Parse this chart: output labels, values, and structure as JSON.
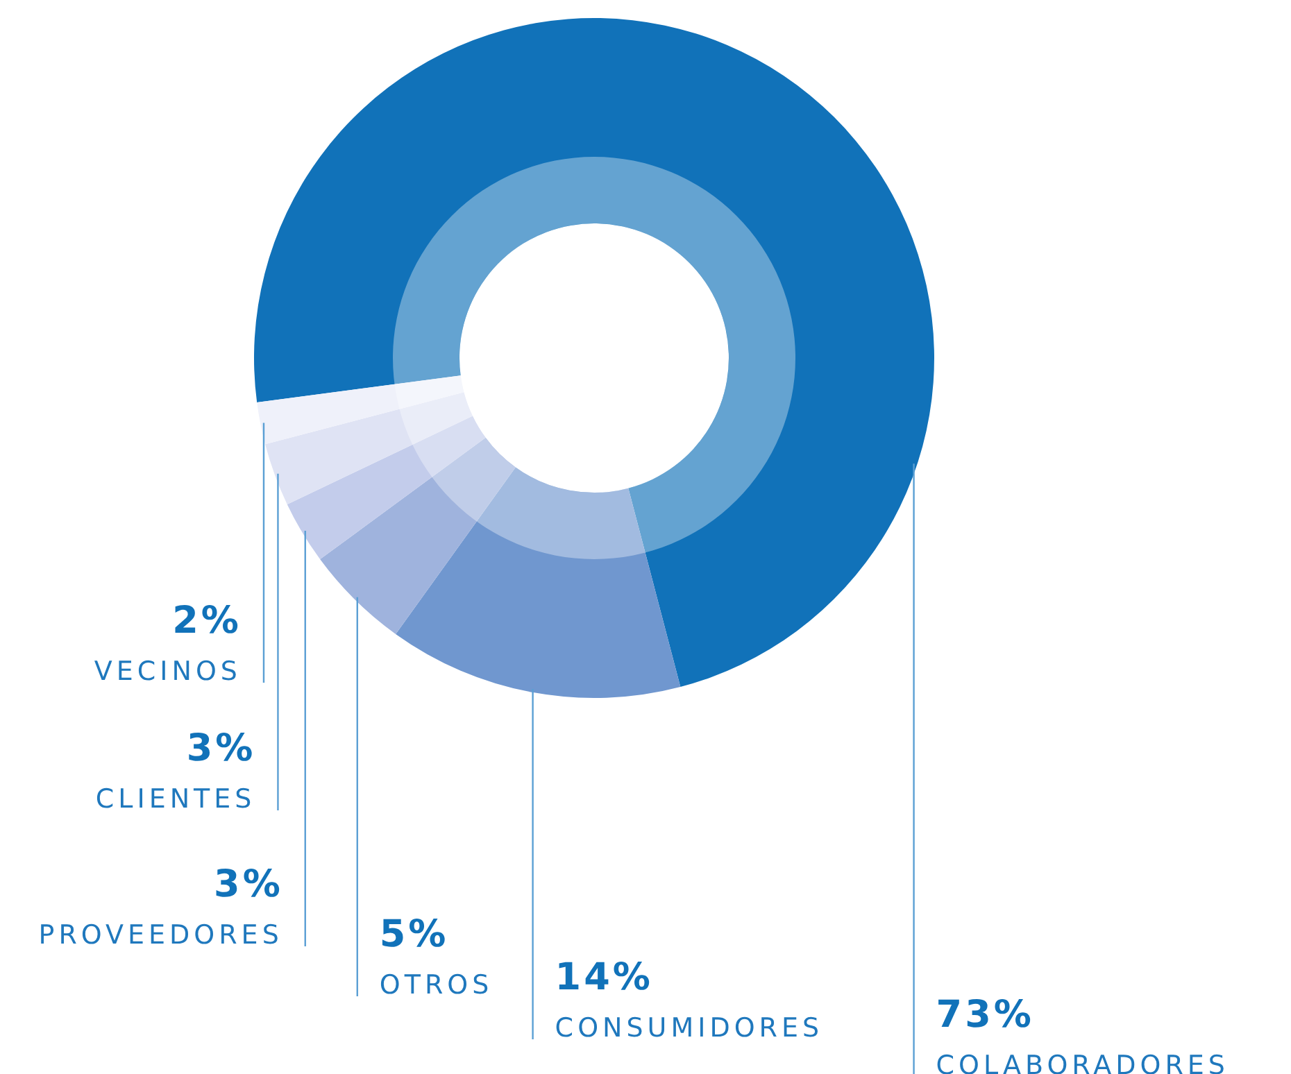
{
  "chart_data": {
    "type": "donut",
    "categories": [
      "COLABORADORES",
      "CONSUMIDORES",
      "OTROS",
      "PROVEEDORES",
      "CLIENTES",
      "VECINOS"
    ],
    "values": [
      73,
      14,
      5,
      3,
      3,
      2
    ],
    "colors": [
      "#1172b9",
      "#7097cf",
      "#9fb3dd",
      "#c3cceb",
      "#dfe3f4",
      "#eff1fa"
    ],
    "value_labels": [
      "73%",
      "14%",
      "5%",
      "3%",
      "3%",
      "2%"
    ]
  }
}
